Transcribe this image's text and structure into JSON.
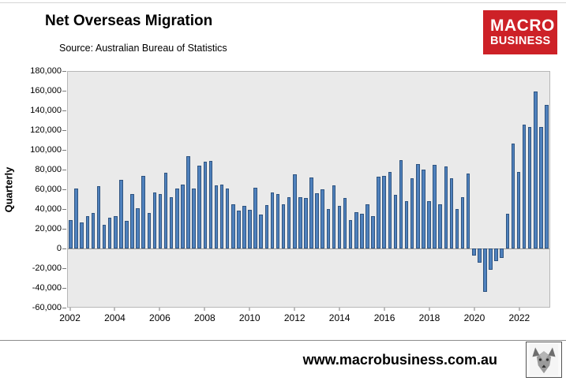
{
  "header": {
    "title": "Net Overseas Migration",
    "subtitle": "Source: Australian Bureau of Statistics",
    "logo": {
      "line1": "MACRO",
      "line2": "BUSINESS",
      "bg_color": "#cd2127",
      "text_color": "#ffffff"
    }
  },
  "footer": {
    "url": "www.macrobusiness.com.au",
    "logo_icon": "wolf-icon"
  },
  "chart_data": {
    "type": "bar",
    "title": "Net Overseas Migration",
    "subtitle": "Source: Australian Bureau of Statistics",
    "xlabel": "",
    "ylabel": "Quarterly",
    "ylim": [
      -60000,
      180000
    ],
    "ytick_step": 20000,
    "yticks": [
      180000,
      160000,
      140000,
      120000,
      100000,
      80000,
      60000,
      40000,
      20000,
      0,
      -20000,
      -40000,
      -60000
    ],
    "grid": false,
    "legend": false,
    "plot_bg": "#eaeaea",
    "bar_color": "#4f81bd",
    "bar_border_color": "#2f5480",
    "x_labels": [
      "2002",
      "2004",
      "2006",
      "2008",
      "2010",
      "2012",
      "2014",
      "2016",
      "2018",
      "2020",
      "2022"
    ],
    "x_label_indices": [
      0,
      8,
      16,
      24,
      32,
      40,
      48,
      56,
      64,
      72,
      80
    ],
    "quarters": [
      "2002Q1",
      "2002Q2",
      "2002Q3",
      "2002Q4",
      "2003Q1",
      "2003Q2",
      "2003Q3",
      "2003Q4",
      "2004Q1",
      "2004Q2",
      "2004Q3",
      "2004Q4",
      "2005Q1",
      "2005Q2",
      "2005Q3",
      "2005Q4",
      "2006Q1",
      "2006Q2",
      "2006Q3",
      "2006Q4",
      "2007Q1",
      "2007Q2",
      "2007Q3",
      "2007Q4",
      "2008Q1",
      "2008Q2",
      "2008Q3",
      "2008Q4",
      "2009Q1",
      "2009Q2",
      "2009Q3",
      "2009Q4",
      "2010Q1",
      "2010Q2",
      "2010Q3",
      "2010Q4",
      "2011Q1",
      "2011Q2",
      "2011Q3",
      "2011Q4",
      "2012Q1",
      "2012Q2",
      "2012Q3",
      "2012Q4",
      "2013Q1",
      "2013Q2",
      "2013Q3",
      "2013Q4",
      "2014Q1",
      "2014Q2",
      "2014Q3",
      "2014Q4",
      "2015Q1",
      "2015Q2",
      "2015Q3",
      "2015Q4",
      "2016Q1",
      "2016Q2",
      "2016Q3",
      "2016Q4",
      "2017Q1",
      "2017Q2",
      "2017Q3",
      "2017Q4",
      "2018Q1",
      "2018Q2",
      "2018Q3",
      "2018Q4",
      "2019Q1",
      "2019Q2",
      "2019Q3",
      "2019Q4",
      "2020Q1",
      "2020Q2",
      "2020Q3",
      "2020Q4",
      "2021Q1",
      "2021Q2",
      "2021Q3",
      "2021Q4",
      "2022Q1",
      "2022Q2",
      "2022Q3",
      "2022Q4",
      "2023Q1",
      "2023Q2"
    ],
    "values": [
      29000,
      61000,
      26000,
      33000,
      36000,
      63000,
      24000,
      31000,
      33000,
      70000,
      28000,
      55000,
      41000,
      74000,
      36000,
      57000,
      55000,
      77000,
      52000,
      61000,
      65000,
      94000,
      61000,
      84000,
      88000,
      89000,
      64000,
      65000,
      61000,
      45000,
      38000,
      43000,
      39000,
      62000,
      34000,
      44000,
      57000,
      55000,
      45000,
      52000,
      75000,
      52000,
      51000,
      72000,
      56000,
      60000,
      40000,
      64000,
      43000,
      51000,
      29000,
      37000,
      35000,
      45000,
      33000,
      73000,
      74000,
      78000,
      54000,
      90000,
      48000,
      71000,
      86000,
      80000,
      48000,
      85000,
      45000,
      83000,
      71000,
      40000,
      52000,
      76000,
      -8000,
      -15000,
      -45000,
      -22000,
      -13000,
      -10000,
      35000,
      107000,
      78000,
      126000,
      124000,
      160000,
      124000,
      146000
    ]
  }
}
